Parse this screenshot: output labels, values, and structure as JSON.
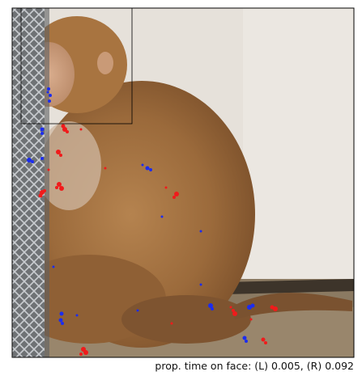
{
  "caption": {
    "prefix": "prop. time on face:",
    "left_label": "(L)",
    "left_value": "0.005",
    "right_label": "(R)",
    "right_value": "0.092"
  },
  "colors": {
    "left_fixation": "#1b2cf0",
    "right_fixation": "#f01b1b",
    "wall": "#e7e2dc",
    "fur": "#9a6a3a",
    "fence": "#8a8f96"
  },
  "image_subject": "rhesus macaque seated beside a chain-link fence, with blue (left-eye) and red (right-eye) gaze samples overlaid and a rectangular face region outlined"
}
